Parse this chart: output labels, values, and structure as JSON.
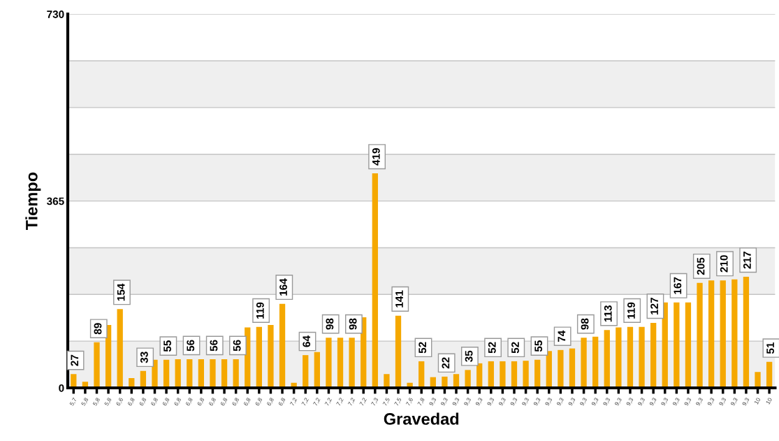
{
  "chart_data": {
    "type": "bar",
    "xlabel": "Gravedad",
    "ylabel": "Tiempo",
    "categories": [
      "5,7",
      "5,8",
      "5,8",
      "5,8",
      "6,6",
      "6,8",
      "6,8",
      "6,8",
      "6,8",
      "6,8",
      "6,8",
      "6,8",
      "6,8",
      "6,8",
      "6,8",
      "6,8",
      "6,8",
      "6,8",
      "6,8",
      "7,2",
      "7,2",
      "7,2",
      "7,2",
      "7,2",
      "7,2",
      "7,2",
      "7,3",
      "7,5",
      "7,5",
      "7,6",
      "7,8",
      "9,3",
      "9,3",
      "9,3",
      "9,3",
      "9,3",
      "9,3",
      "9,3",
      "9,3",
      "9,3",
      "9,3",
      "9,3",
      "9,3",
      "9,3",
      "9,3",
      "9,3",
      "9,3",
      "9,3",
      "9,3",
      "9,3",
      "9,3",
      "9,3",
      "9,3",
      "9,3",
      "9,3",
      "9,3",
      "9,3",
      "9,3",
      "9,3",
      "10",
      "10"
    ],
    "values": [
      27,
      12,
      89,
      123,
      154,
      19,
      33,
      55,
      55,
      56,
      56,
      56,
      56,
      56,
      56,
      118,
      119,
      123,
      164,
      10,
      64,
      70,
      98,
      98,
      98,
      138,
      419,
      27,
      141,
      10,
      52,
      21,
      22,
      27,
      35,
      48,
      52,
      52,
      52,
      53,
      55,
      72,
      74,
      77,
      98,
      100,
      113,
      118,
      119,
      119,
      127,
      167,
      167,
      167,
      205,
      210,
      210,
      212,
      217,
      31,
      51
    ],
    "value_labels": [
      "27",
      null,
      "89",
      null,
      "154",
      null,
      "33",
      null,
      "55",
      null,
      "56",
      null,
      "56",
      null,
      "56",
      null,
      "119",
      null,
      "164",
      null,
      "64",
      null,
      "98",
      null,
      "98",
      null,
      "419",
      null,
      "141",
      null,
      "52",
      null,
      "22",
      null,
      "35",
      null,
      "52",
      null,
      "52",
      null,
      "55",
      null,
      "74",
      null,
      "98",
      null,
      "113",
      null,
      "119",
      null,
      "127",
      null,
      "167",
      null,
      "205",
      null,
      "210",
      null,
      "217",
      null,
      "51"
    ],
    "color": "#f5a800",
    "ylim": [
      0,
      730
    ],
    "yticks": [
      0,
      {
        "value": 91.25,
        "label": null
      },
      {
        "value": 182.5,
        "label": null
      },
      {
        "value": 273.75,
        "label": null
      },
      365,
      {
        "value": 456.25,
        "label": null
      },
      {
        "value": 547.5,
        "label": null
      },
      {
        "value": 638.75,
        "label": null
      },
      730
    ],
    "grid": "y",
    "bands": [
      {
        "axis": "y",
        "from": 0,
        "to": 91.25,
        "color": "#efefef"
      },
      {
        "axis": "y",
        "from": 182.5,
        "to": 273.75,
        "color": "#efefef"
      },
      {
        "axis": "y",
        "from": 365,
        "to": 456.25,
        "color": "#efefef"
      },
      {
        "axis": "y",
        "from": 547.5,
        "to": 638.75,
        "color": "#efefef"
      }
    ]
  }
}
